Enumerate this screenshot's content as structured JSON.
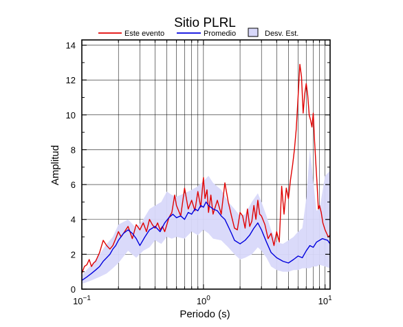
{
  "chart_data": {
    "type": "line",
    "title": "Sitio PLRL",
    "xlabel": "Periodo (s)",
    "ylabel": "Amplitud",
    "xscale": "log",
    "xlim": [
      0.1,
      11
    ],
    "ylim": [
      0,
      14.3
    ],
    "grid": true,
    "legend_position": "top",
    "x_ticks": [
      {
        "value": 0.1,
        "base": "10",
        "exp": "−1"
      },
      {
        "value": 1,
        "base": "10",
        "exp": "0"
      },
      {
        "value": 10,
        "base": "10",
        "exp": "1"
      }
    ],
    "y_ticks": [
      0,
      2,
      4,
      6,
      8,
      10,
      12,
      14
    ],
    "legend": [
      {
        "label": "Este evento",
        "kind": "line",
        "color": "#e00000"
      },
      {
        "label": "Promedio",
        "kind": "line",
        "color": "#0000dd"
      },
      {
        "label": "Desv. Est.",
        "kind": "box",
        "color": "#d8d8fa"
      }
    ],
    "series": [
      {
        "name": "Este evento",
        "color": "#e00000",
        "x": [
          0.1,
          0.105,
          0.11,
          0.115,
          0.12,
          0.125,
          0.13,
          0.14,
          0.15,
          0.16,
          0.17,
          0.18,
          0.19,
          0.2,
          0.21,
          0.22,
          0.24,
          0.26,
          0.28,
          0.3,
          0.32,
          0.34,
          0.36,
          0.38,
          0.4,
          0.42,
          0.44,
          0.46,
          0.48,
          0.5,
          0.52,
          0.55,
          0.58,
          0.6,
          0.65,
          0.7,
          0.75,
          0.8,
          0.85,
          0.9,
          0.95,
          1.0,
          1.03,
          1.07,
          1.1,
          1.15,
          1.2,
          1.3,
          1.4,
          1.5,
          1.6,
          1.7,
          1.8,
          1.9,
          2.0,
          2.1,
          2.2,
          2.3,
          2.4,
          2.5,
          2.6,
          2.7,
          2.8,
          2.9,
          3.0,
          3.2,
          3.4,
          3.6,
          3.8,
          4.0,
          4.2,
          4.4,
          4.6,
          4.8,
          5.0,
          5.2,
          5.4,
          5.6,
          5.8,
          6.0,
          6.2,
          6.4,
          6.6,
          6.8,
          7.0,
          7.2,
          7.4,
          7.6,
          7.8,
          8.0,
          8.2,
          8.4,
          8.6,
          8.8,
          9.0,
          9.3,
          9.6,
          10.0,
          10.3,
          10.6,
          11.0
        ],
        "y": [
          0.9,
          1.3,
          1.4,
          1.7,
          1.3,
          1.5,
          1.6,
          2.1,
          2.8,
          2.5,
          2.3,
          2.5,
          2.9,
          3.3,
          3.0,
          3.2,
          3.6,
          2.9,
          3.7,
          3.4,
          3.8,
          3.3,
          4.0,
          3.7,
          3.5,
          3.8,
          3.4,
          3.6,
          3.3,
          3.7,
          4.1,
          4.4,
          5.4,
          4.8,
          4.2,
          5.8,
          4.6,
          5.1,
          4.5,
          5.6,
          4.7,
          6.4,
          5.2,
          5.7,
          4.4,
          5.4,
          4.3,
          5.1,
          4.3,
          6.1,
          5.0,
          4.2,
          3.5,
          3.4,
          4.4,
          4.2,
          3.5,
          4.6,
          3.6,
          3.9,
          4.8,
          4.0,
          5.1,
          4.3,
          4.2,
          3.7,
          2.9,
          3.2,
          2.5,
          3.3,
          2.7,
          5.9,
          4.3,
          5.8,
          5.2,
          6.3,
          7.1,
          8.0,
          9.2,
          11.0,
          12.9,
          12.2,
          10.1,
          11.2,
          11.8,
          11.1,
          10.0,
          9.7,
          9.3,
          10.1,
          8.5,
          7.2,
          6.0,
          4.6,
          4.8,
          4.4,
          3.8,
          3.4,
          3.2,
          3.0,
          3.1
        ]
      },
      {
        "name": "Promedio",
        "color": "#0000dd",
        "x": [
          0.1,
          0.11,
          0.12,
          0.13,
          0.14,
          0.15,
          0.16,
          0.17,
          0.18,
          0.19,
          0.2,
          0.22,
          0.24,
          0.26,
          0.28,
          0.3,
          0.33,
          0.36,
          0.4,
          0.44,
          0.48,
          0.52,
          0.56,
          0.6,
          0.65,
          0.7,
          0.75,
          0.8,
          0.85,
          0.9,
          0.95,
          1.0,
          1.05,
          1.1,
          1.2,
          1.3,
          1.4,
          1.5,
          1.6,
          1.7,
          1.8,
          2.0,
          2.2,
          2.4,
          2.6,
          2.8,
          3.0,
          3.3,
          3.6,
          4.0,
          4.5,
          5.0,
          5.5,
          6.0,
          6.5,
          7.0,
          7.5,
          8.0,
          8.5,
          9.0,
          9.5,
          10.0,
          10.5,
          11.0
        ],
        "y": [
          0.5,
          0.7,
          0.9,
          1.1,
          1.3,
          1.6,
          1.8,
          2.0,
          2.3,
          2.5,
          2.8,
          3.2,
          3.4,
          3.2,
          2.9,
          2.5,
          3.0,
          3.4,
          3.6,
          3.3,
          3.8,
          4.1,
          4.3,
          4.1,
          4.2,
          4.0,
          4.4,
          4.3,
          4.6,
          4.5,
          4.8,
          4.7,
          5.0,
          4.8,
          4.6,
          4.5,
          4.2,
          4.0,
          3.6,
          3.2,
          2.8,
          2.6,
          2.8,
          3.1,
          3.5,
          3.8,
          3.4,
          2.7,
          2.1,
          1.8,
          1.6,
          1.5,
          1.7,
          1.9,
          1.8,
          2.2,
          2.5,
          2.4,
          2.7,
          2.8,
          2.9,
          2.85,
          2.8,
          2.6
        ]
      },
      {
        "name": "Desv. Est.",
        "color": "#d8d8fa",
        "x": [
          0.1,
          0.12,
          0.14,
          0.16,
          0.18,
          0.2,
          0.24,
          0.28,
          0.32,
          0.36,
          0.4,
          0.45,
          0.5,
          0.55,
          0.6,
          0.7,
          0.8,
          0.9,
          1.0,
          1.1,
          1.2,
          1.4,
          1.6,
          1.8,
          2.0,
          2.2,
          2.5,
          2.8,
          3.0,
          3.3,
          3.6,
          4.0,
          4.5,
          5.0,
          5.5,
          6.0,
          6.5,
          7.0,
          7.5,
          8.0,
          8.5,
          9.0,
          10.0,
          11.0
        ],
        "y_low": [
          0.3,
          0.5,
          0.7,
          0.9,
          1.2,
          1.5,
          2.2,
          1.8,
          2.2,
          2.4,
          2.8,
          2.6,
          3.0,
          2.9,
          3.0,
          2.9,
          3.3,
          3.1,
          3.4,
          3.2,
          2.9,
          2.8,
          2.4,
          2.0,
          1.7,
          1.8,
          2.0,
          2.4,
          2.2,
          1.8,
          1.3,
          1.1,
          1.0,
          1.0,
          1.1,
          1.1,
          1.2,
          1.2,
          1.2,
          1.3,
          1.3,
          1.4,
          1.3,
          1.2
        ],
        "y_high": [
          0.8,
          1.4,
          2.0,
          2.6,
          3.0,
          3.7,
          4.0,
          3.5,
          4.0,
          4.6,
          4.8,
          5.0,
          5.6,
          5.4,
          5.3,
          5.5,
          5.7,
          5.9,
          6.2,
          6.5,
          6.1,
          5.7,
          5.0,
          4.6,
          4.2,
          4.3,
          5.0,
          5.5,
          5.0,
          4.2,
          3.4,
          2.7,
          2.6,
          2.8,
          3.0,
          3.3,
          3.5,
          5.2,
          8.0,
          6.2,
          4.5,
          4.6,
          6.5,
          6.8
        ]
      }
    ]
  }
}
